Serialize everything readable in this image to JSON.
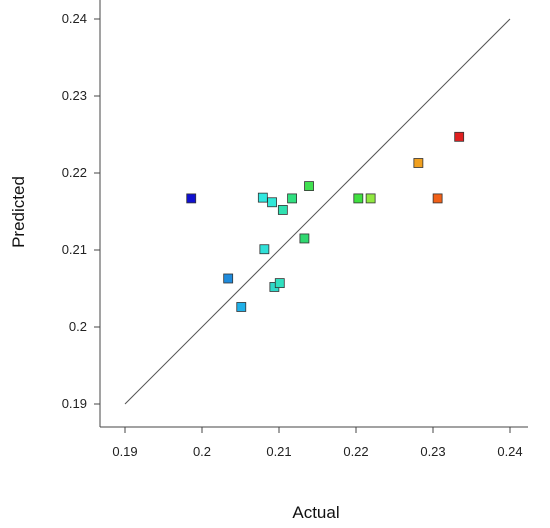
{
  "chart_data": {
    "type": "scatter",
    "xlabel": "Actual",
    "ylabel": "Predicted",
    "xlim": [
      0.19,
      0.24
    ],
    "ylim": [
      0.19,
      0.24
    ],
    "grid": false,
    "x_ticks": [
      "0.19",
      "0.2",
      "0.21",
      "0.22",
      "0.23",
      "0.24"
    ],
    "y_ticks": [
      "0.19",
      "0.2",
      "0.21",
      "0.22",
      "0.23",
      "0.24"
    ],
    "reference_line": {
      "from": [
        0.19,
        0.19
      ],
      "to": [
        0.24,
        0.24
      ],
      "color": "#555555"
    },
    "points": [
      {
        "x": 0.1986,
        "y": 0.2167,
        "color": "#1010d0"
      },
      {
        "x": 0.2034,
        "y": 0.2063,
        "color": "#1f8bdc"
      },
      {
        "x": 0.2051,
        "y": 0.2026,
        "color": "#20b0e8"
      },
      {
        "x": 0.2079,
        "y": 0.2168,
        "color": "#30e8e0"
      },
      {
        "x": 0.2081,
        "y": 0.2101,
        "color": "#30e0d8"
      },
      {
        "x": 0.2091,
        "y": 0.2162,
        "color": "#30e8d8"
      },
      {
        "x": 0.2094,
        "y": 0.2052,
        "color": "#30d8c8"
      },
      {
        "x": 0.2101,
        "y": 0.2057,
        "color": "#30e0c0"
      },
      {
        "x": 0.2105,
        "y": 0.2152,
        "color": "#30e0b0"
      },
      {
        "x": 0.2117,
        "y": 0.2167,
        "color": "#30e080"
      },
      {
        "x": 0.2133,
        "y": 0.2115,
        "color": "#30d870"
      },
      {
        "x": 0.2139,
        "y": 0.2183,
        "color": "#40e050"
      },
      {
        "x": 0.2203,
        "y": 0.2167,
        "color": "#40e040"
      },
      {
        "x": 0.2219,
        "y": 0.2167,
        "color": "#90e840"
      },
      {
        "x": 0.2281,
        "y": 0.2213,
        "color": "#f0a020"
      },
      {
        "x": 0.2306,
        "y": 0.2167,
        "color": "#f06018"
      },
      {
        "x": 0.2334,
        "y": 0.2247,
        "color": "#e02020"
      }
    ]
  }
}
